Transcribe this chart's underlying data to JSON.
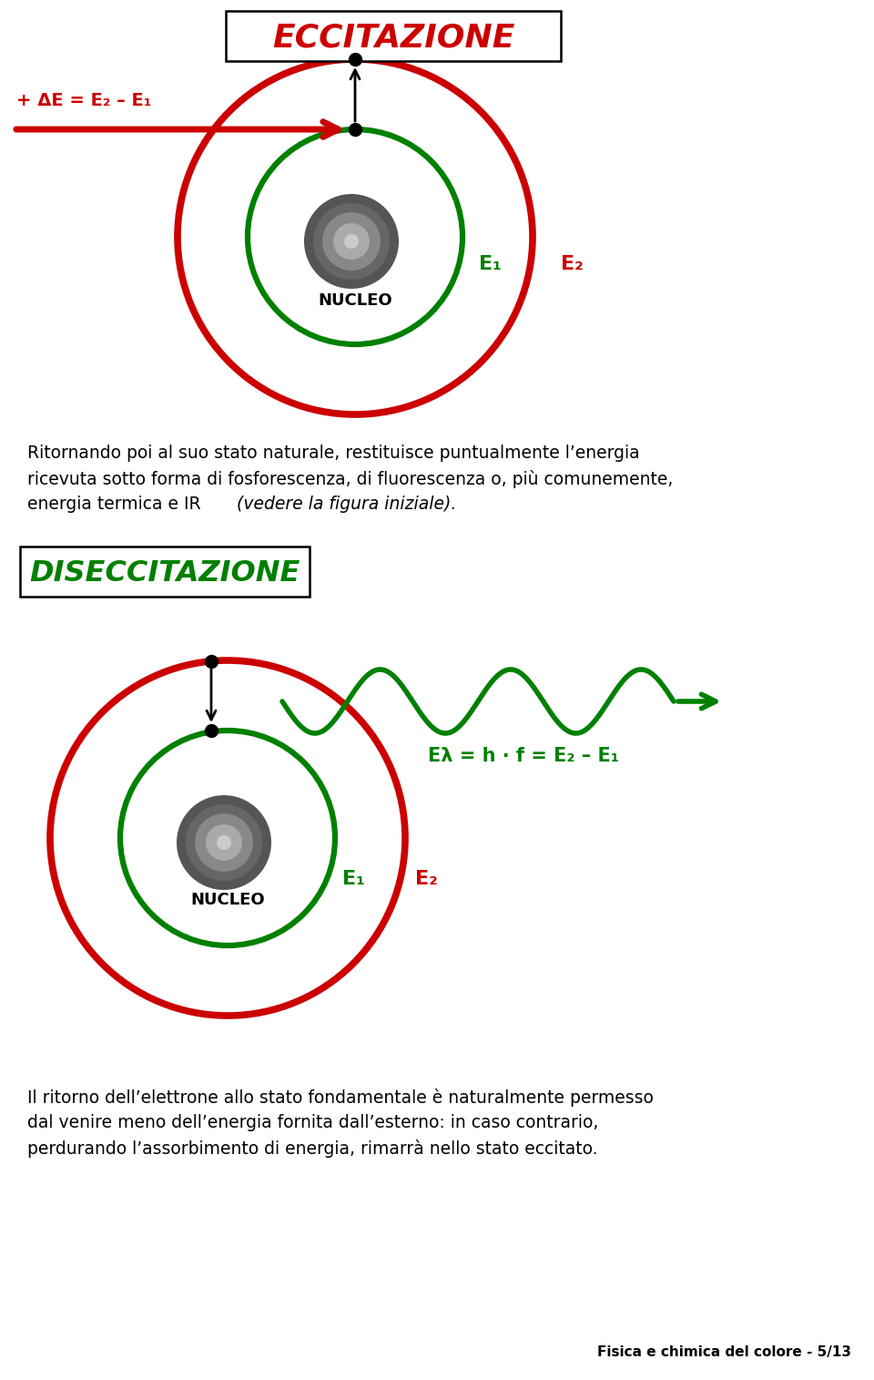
{
  "title_top": "ECCITAZIONE",
  "title_top_color": "#CC0000",
  "title_mid": "DISECCITAZIONE",
  "title_mid_color": "#008000",
  "red_color": "#CC0000",
  "green_color": "#008000",
  "black_color": "#000000",
  "text1_label": "+ ΔE = E₂ – E₁",
  "E1_label": "E₁",
  "E2_label": "E₂",
  "nucleo_label": "NUCLEO",
  "eq_label": "Eλ = h · f = E₂ – E₁",
  "para1_line1": "Ritornando poi al suo stato naturale, restituisce puntualmente l’energia",
  "para1_line2": "ricevuta sotto forma di fosforescenza, di fluorescenza o, più comunemente,",
  "para1_line3": "energia termica e IR (vedere la figura iniziale).",
  "para1_line3_italic": "(vedere la figura iniziale).",
  "para2_line1": "Il ritorno dell’elettrone allo stato fondamentale è naturalmente permesso",
  "para2_line2": "dal venire meno dell’energia fornita dall’esterno: in caso contrario,",
  "para2_line3": "perdurando l’assorbimento di energia, rimarrà nello stato eccitato.",
  "footer": "Fisica e chimica del colore - 5/13",
  "background_color": "#FFFFFF"
}
